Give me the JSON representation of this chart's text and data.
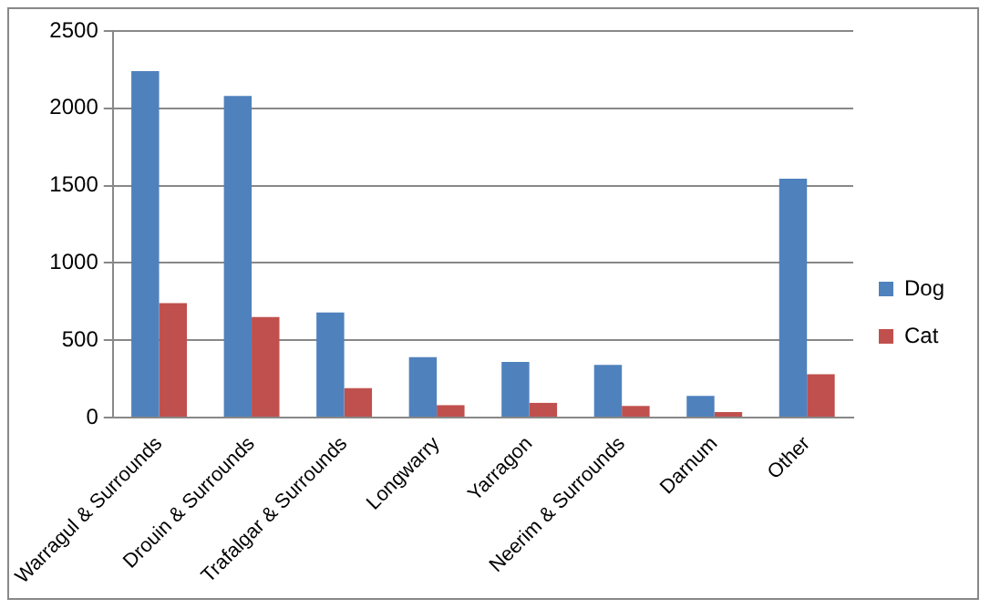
{
  "chart_data": {
    "type": "bar",
    "categories": [
      "Warragul & Surrounds",
      "Drouin & Surrounds",
      "Trafalgar & Surrounds",
      "Longwarry",
      "Yarragon",
      "Neerim & Surrounds",
      "Darnum",
      "Other"
    ],
    "series": [
      {
        "name": "Dog",
        "color": "#4f81bd",
        "values": [
          2240,
          2080,
          680,
          390,
          360,
          340,
          140,
          1545
        ]
      },
      {
        "name": "Cat",
        "color": "#c0504d",
        "values": [
          740,
          650,
          190,
          80,
          95,
          75,
          35,
          280
        ]
      }
    ],
    "ylim": [
      0,
      2500
    ],
    "yticks": [
      0,
      500,
      1000,
      1500,
      2000,
      2500
    ],
    "grid": "y",
    "legend": "right"
  }
}
